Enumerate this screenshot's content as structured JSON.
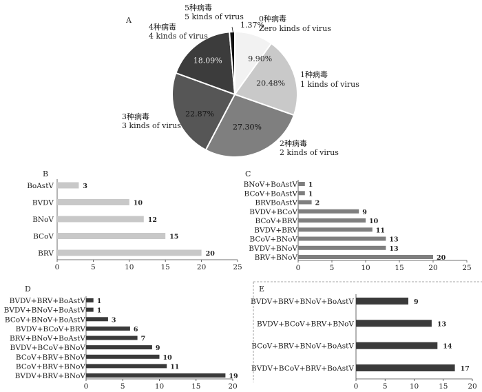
{
  "chart_data": [
    {
      "id": "A",
      "type": "pie",
      "panel_label": "A",
      "slices": [
        {
          "cn": "0种病毒",
          "en": "Zero kinds of virus",
          "value": 9.9,
          "label": "9.90%",
          "color": "#f2f2f2",
          "text_color": "#222222"
        },
        {
          "cn": "1种病毒",
          "en": "1 kinds of virus",
          "value": 20.48,
          "label": "20.48%",
          "color": "#c9c9c9",
          "text_color": "#222222"
        },
        {
          "cn": "2种病毒",
          "en": "2 kinds of virus",
          "value": 27.3,
          "label": "27.30%",
          "color": "#7f7f7f",
          "text_color": "#111111"
        },
        {
          "cn": "3种病毒",
          "en": "3 kinds of virus",
          "value": 22.87,
          "label": "22.87%",
          "color": "#565656",
          "text_color": "#111111"
        },
        {
          "cn": "4种病毒",
          "en": "4 kinds of virus",
          "value": 18.09,
          "label": "18.09%",
          "color": "#3c3c3c",
          "text_color": "#e8e8e8"
        },
        {
          "cn": "5种病毒",
          "en": "5 kinds of virus",
          "value": 1.37,
          "label": "1.37%",
          "color": "#111111",
          "text_color": "#222222"
        }
      ]
    },
    {
      "id": "B",
      "type": "bar",
      "orientation": "horizontal",
      "panel_label": "B",
      "categories": [
        "BoAstV",
        "BVDV",
        "BNoV",
        "BCoV",
        "BRV"
      ],
      "values": [
        3,
        10,
        12,
        15,
        20
      ],
      "xlim": [
        0,
        25
      ],
      "xticks": [
        "0",
        "5",
        "10",
        "15",
        "20",
        "25"
      ],
      "bar_color": "#c8c8c8"
    },
    {
      "id": "C",
      "type": "bar",
      "orientation": "horizontal",
      "panel_label": "C",
      "categories": [
        "BNoV+BoAstV",
        "BCoV+BoAstV",
        "BRVBoAstV",
        "BVDV+BCoV",
        "BCoV+BRV",
        "BVDV+BRV",
        "BCoV+BNoV",
        "BVDV+BNoV",
        "BRV+BNoV"
      ],
      "values": [
        1,
        1,
        2,
        9,
        10,
        11,
        13,
        13,
        20
      ],
      "xlim": [
        0,
        25
      ],
      "xticks": [
        "0",
        "5",
        "10",
        "15",
        "20",
        "25"
      ],
      "bar_color": "#7f7f7f"
    },
    {
      "id": "D",
      "type": "bar",
      "orientation": "horizontal",
      "panel_label": "D",
      "categories": [
        "BVDV+BRV+BoAstV",
        "BVDV+BNoV+BoAstV",
        "BCoV+BNoV+BoAstV",
        "BVDV+BCoV+BRV",
        "BRV+BNoV+BoAstV",
        "BVDV+BCoV+BNoV",
        "BCoV+BRV+BNoV",
        "BCoV+BRV+BNoV",
        "BVDV+BRV+BNoV"
      ],
      "values": [
        1,
        1,
        3,
        6,
        7,
        9,
        10,
        11,
        19
      ],
      "xlim": [
        0,
        20
      ],
      "xticks": [
        "0",
        "5",
        "10",
        "15",
        "20"
      ],
      "bar_color": "#3a3a3a"
    },
    {
      "id": "E",
      "type": "bar",
      "orientation": "horizontal",
      "panel_label": "E",
      "categories": [
        "BVDV+BRV+BNoV+BoAstV",
        "BVDV+BCoV+BRV+BNoV",
        "BCoV+BRV+BNoV+BoAstV",
        "BVDV+BCoV+BRV+BoAstV"
      ],
      "values": [
        9,
        13,
        14,
        17
      ],
      "xlim": [
        0,
        20
      ],
      "xticks": [
        "0",
        "5",
        "10",
        "15",
        "20"
      ],
      "bar_color": "#3a3a3a"
    }
  ]
}
